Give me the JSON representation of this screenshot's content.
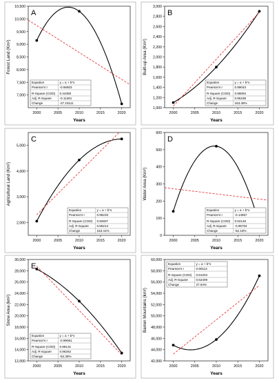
{
  "figure": {
    "panel_order": [
      "A",
      "B",
      "C",
      "D",
      "E",
      "F"
    ]
  },
  "colors": {
    "fit_line": "#e8383b",
    "curve": "#000000",
    "frame": "#333333",
    "points": "#000000"
  },
  "chart_data": [
    {
      "panel": "A",
      "type": "scatter",
      "ylabel": "Forest Land (Km²)",
      "xlabel": "Years",
      "x": [
        2000,
        2010,
        2020
      ],
      "y": [
        9150,
        10300,
        6650
      ],
      "xlim": [
        1998,
        2022
      ],
      "xticks": [
        2000,
        2005,
        2010,
        2015,
        2020
      ],
      "ylim": [
        6500,
        10500
      ],
      "yticks": [
        7000,
        7500,
        8000,
        8500,
        9000,
        9500,
        10000,
        10500
      ],
      "ytick_labels": [
        "7,000",
        "7,500",
        "8,000",
        "8,500",
        "9,000",
        "9,500",
        "10,000",
        "10,500"
      ],
      "linear_fit": [
        [
          1998,
          9950
        ],
        [
          2022,
          7400
        ]
      ],
      "stats_table": [
        [
          "Equation",
          "y = a + b*x"
        ],
        [
          "Pearson's r",
          "-0.66603"
        ],
        [
          "R-Square (COD)",
          "0.44359"
        ],
        [
          "Adj. R-Square",
          "-0.11281"
        ],
        [
          "Change",
          "-27.15111"
        ]
      ],
      "table_corner": "bottom-left"
    },
    {
      "panel": "B",
      "type": "scatter",
      "ylabel": "Built-up Area (Km²)",
      "xlabel": "Years",
      "x": [
        2000,
        2010,
        2020
      ],
      "y": [
        1100,
        1800,
        2900
      ],
      "xlim": [
        1998,
        2022
      ],
      "xticks": [
        2000,
        2005,
        2010,
        2015,
        2020
      ],
      "ylim": [
        1000,
        3000
      ],
      "yticks": [
        1000,
        1200,
        1400,
        1600,
        1800,
        2000,
        2200,
        2400,
        2600,
        2800,
        3000
      ],
      "ytick_labels": [
        "1,000",
        "1,200",
        "1,400",
        "1,600",
        "1,800",
        "2,000",
        "2,200",
        "2,400",
        "2,600",
        "2,800",
        "3,000"
      ],
      "linear_fit": [
        [
          2000,
          1030
        ],
        [
          2020,
          2880
        ]
      ],
      "stats_table": [
        [
          "Equation",
          "y = a + b*x"
        ],
        [
          "Pearson's r",
          "0.99043"
        ],
        [
          "R-Square (COD)",
          "0.98094"
        ],
        [
          "Adj. R-Square",
          "0.96189"
        ],
        [
          "Change",
          "163.48%"
        ]
      ],
      "table_corner": "bottom-right"
    },
    {
      "panel": "C",
      "type": "scatter",
      "ylabel": "Agricultural Land (Km²)",
      "xlabel": "Years",
      "x": [
        2000,
        2010,
        2020
      ],
      "y": [
        2050,
        4430,
        5250
      ],
      "xlim": [
        1998,
        2022
      ],
      "xticks": [
        2000,
        2005,
        2010,
        2015,
        2020
      ],
      "ylim": [
        1500,
        5500
      ],
      "yticks": [
        2000,
        3000,
        4000,
        5000
      ],
      "ytick_labels": [
        "2,000",
        "3,000",
        "4,000",
        "5,000"
      ],
      "linear_fit": [
        [
          2000,
          2300
        ],
        [
          2020,
          5600
        ]
      ],
      "stats_table": [
        [
          "Equation",
          "y = a + b*x"
        ],
        [
          "Pearson's r",
          "0.96233"
        ],
        [
          "R-Square (COD)",
          "0.92607"
        ],
        [
          "Adj. R-Square",
          "0.85214"
        ],
        [
          "Change",
          "153.41%"
        ]
      ],
      "table_corner": "bottom-right"
    },
    {
      "panel": "D",
      "type": "scatter",
      "ylabel": "Water Area (Km²)",
      "xlabel": "Years",
      "x": [
        2000,
        2010,
        2020
      ],
      "y": [
        140,
        520,
        65
      ],
      "xlim": [
        1998,
        2022
      ],
      "xticks": [
        2000,
        2005,
        2010,
        2015,
        2020
      ],
      "ylim": [
        0,
        600
      ],
      "yticks": [
        0,
        100,
        200,
        300,
        400,
        500,
        600
      ],
      "ytick_labels": [
        "0",
        "100",
        "200",
        "300",
        "400",
        "500",
        "600"
      ],
      "linear_fit": [
        [
          1998,
          278
        ],
        [
          2022,
          205
        ]
      ],
      "stats_table": [
        [
          "Equation",
          "y = a + b*x"
        ],
        [
          "Pearson's r",
          "-0.14657"
        ],
        [
          "R-Square (COD)",
          "0.02148"
        ],
        [
          "Adj. R-Square",
          "-0.95704"
        ],
        [
          "Change",
          "-52.18%"
        ]
      ],
      "table_corner": "bottom-right"
    },
    {
      "panel": "E",
      "type": "scatter",
      "ylabel": "Snow Area (km²)",
      "xlabel": "Years",
      "x": [
        2000,
        2010,
        2020
      ],
      "y": [
        28300,
        22600,
        13400
      ],
      "xlim": [
        1998,
        2022
      ],
      "xticks": [
        2000,
        2005,
        2010,
        2015,
        2020
      ],
      "ylim": [
        12000,
        30000
      ],
      "yticks": [
        12000,
        14000,
        16000,
        18000,
        20000,
        22000,
        24000,
        26000,
        28000,
        30000
      ],
      "ytick_labels": [
        "12,000",
        "14,000",
        "16,000",
        "18,000",
        "20,000",
        "22,000",
        "24,000",
        "26,000",
        "28,000",
        "30,000"
      ],
      "linear_fit": [
        [
          2000,
          28800
        ],
        [
          2020,
          13100
        ]
      ],
      "stats_table": [
        [
          "Equation",
          "y = a + b*x"
        ],
        [
          "Pearson's r",
          "-0.99061"
        ],
        [
          "R-Square (COD)",
          "0.98131"
        ],
        [
          "Adj. R-Square",
          "0.96262"
        ],
        [
          "Change",
          "-52.38%"
        ]
      ],
      "table_corner": "bottom-left"
    },
    {
      "panel": "F",
      "type": "scatter",
      "ylabel": "Barren Mountains (km²)",
      "xlabel": "Years",
      "x": [
        2000,
        2010,
        2020
      ],
      "y": [
        44800,
        45800,
        57100
      ],
      "xlim": [
        1998,
        2022
      ],
      "xticks": [
        2000,
        2005,
        2010,
        2015,
        2020
      ],
      "ylim": [
        42000,
        60000
      ],
      "yticks": [
        42000,
        44000,
        46000,
        48000,
        50000,
        52000,
        54000,
        56000,
        58000,
        60000
      ],
      "ytick_labels": [
        "42,000",
        "44,000",
        "46,000",
        "48,000",
        "50,000",
        "52,000",
        "54,000",
        "56,000",
        "58,000",
        "60,000"
      ],
      "linear_fit": [
        [
          2000,
          43200
        ],
        [
          2020,
          55400
        ]
      ],
      "stats_table": [
        [
          "Equation",
          "y = a + b*x"
        ],
        [
          "Pearson's r",
          "0.90113"
        ],
        [
          "R-Square (COD)",
          "0.81204"
        ],
        [
          "Adj. R-Square",
          "0.62409"
        ],
        [
          "Change",
          "27.64%"
        ]
      ],
      "table_corner": "top-left"
    }
  ]
}
